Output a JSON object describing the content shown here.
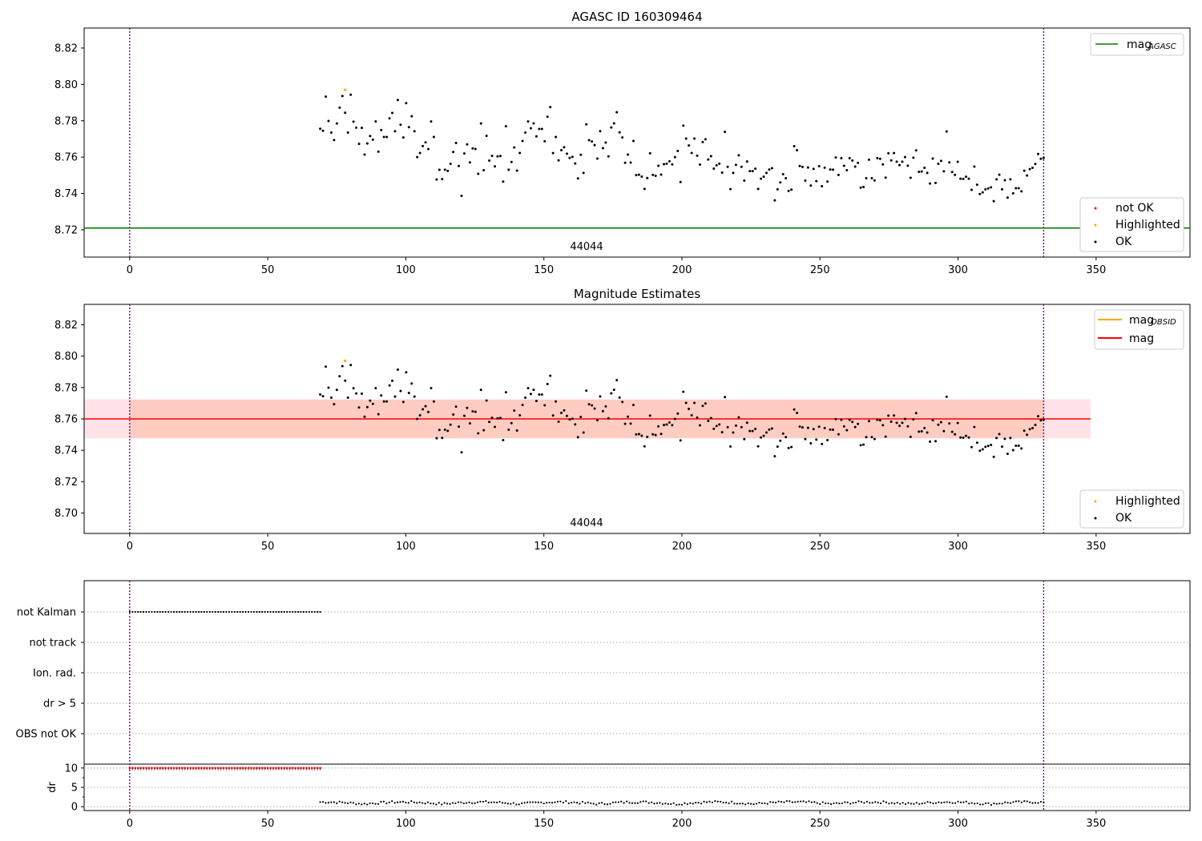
{
  "chart_data": [
    {
      "type": "scatter",
      "title": "AGASC ID 160309464",
      "obsid_label": "44044",
      "ylim": [
        8.705,
        8.831
      ],
      "yticks": [
        "8.72",
        "8.74",
        "8.76",
        "8.78",
        "8.80",
        "8.82"
      ],
      "xlim": [
        -16.5,
        384
      ],
      "xticks": [
        "0",
        "50",
        "100",
        "150",
        "200",
        "250",
        "300",
        "350"
      ],
      "obs_bounds": [
        0,
        331
      ],
      "mag_agasc": 8.721,
      "legend_top": [
        {
          "label": "mag",
          "subscript": "AGASC",
          "color": "#008000"
        }
      ],
      "legend_bottom": [
        {
          "label": "not OK",
          "color": "#ff0000"
        },
        {
          "label": "Highlighted",
          "color": "#ffa500"
        },
        {
          "label": "OK",
          "color": "#000000"
        }
      ],
      "highlighted": [
        {
          "x": 78,
          "y": 8.797
        }
      ],
      "series": {
        "x_start": 69,
        "x_end": 331,
        "values": [
          8.7756,
          8.7745,
          8.7933,
          8.7799,
          8.7735,
          8.7694,
          8.7785,
          8.7872,
          8.7936,
          8.7844,
          8.7735,
          8.7943,
          8.7795,
          8.7762,
          8.7673,
          8.7761,
          8.7614,
          8.7675,
          8.7716,
          8.7696,
          8.7796,
          8.763,
          8.7749,
          8.7711,
          8.7711,
          8.7813,
          8.7843,
          8.7742,
          8.7914,
          8.7778,
          8.7708,
          8.7897,
          8.7765,
          8.7825,
          8.7742,
          8.76,
          8.7623,
          8.7661,
          8.7681,
          8.7644,
          8.7796,
          8.7711,
          8.7477,
          8.753,
          8.7479,
          8.7531,
          8.7524,
          8.7563,
          8.7628,
          8.7678,
          8.7551,
          8.7387,
          8.762,
          8.767,
          8.7571,
          8.7648,
          8.7645,
          8.7508,
          8.7785,
          8.7528,
          8.7717,
          8.7581,
          8.7607,
          8.7549,
          8.7604,
          8.7606,
          8.7465,
          8.777,
          8.7531,
          8.7573,
          8.7653,
          8.7526,
          8.7623,
          8.7689,
          8.7735,
          8.7796,
          8.7759,
          8.7786,
          8.7714,
          8.7755,
          8.7755,
          8.7687,
          8.7822,
          8.7875,
          8.7622,
          8.7711,
          8.7582,
          8.7638,
          8.7654,
          8.7619,
          8.7596,
          8.7601,
          8.7565,
          8.7483,
          8.7613,
          8.7513,
          8.778,
          8.7693,
          8.7686,
          8.7666,
          8.7592,
          8.7743,
          8.7649,
          8.768,
          8.7604,
          8.7763,
          8.7786,
          8.7847,
          8.7736,
          8.7708,
          8.7569,
          8.7614,
          8.757,
          8.7689,
          8.7501,
          8.7503,
          8.7493,
          8.7425,
          8.7485,
          8.7621,
          8.7502,
          8.7497,
          8.7552,
          8.7504,
          8.7561,
          8.7564,
          8.7577,
          8.756,
          8.76,
          8.7634,
          8.7463,
          8.7773,
          8.7702,
          8.7664,
          8.7623,
          8.7702,
          8.7608,
          8.7559,
          8.7683,
          8.7698,
          8.7587,
          8.7605,
          8.7537,
          8.7555,
          8.7564,
          8.7515,
          8.7739,
          8.7547,
          8.7424,
          8.7513,
          8.7557,
          8.761,
          8.7547,
          8.7471,
          8.7576,
          8.7523,
          8.7523,
          8.7536,
          8.7425,
          8.7481,
          8.7492,
          8.7513,
          8.7532,
          8.7539,
          8.7362,
          8.7423,
          8.7461,
          8.7506,
          8.7484,
          8.7414,
          8.7421,
          8.766,
          8.7638,
          8.7551,
          8.7546,
          8.7471,
          8.7543,
          8.7444,
          8.7535,
          8.7468,
          8.755,
          8.744,
          8.7542,
          8.7465,
          8.7532,
          8.7531,
          8.7598,
          8.7502,
          8.7594,
          8.7552,
          8.7528,
          8.7594,
          8.7581,
          8.7548,
          8.7568,
          8.7432,
          8.7436,
          8.7484,
          8.7586,
          8.7484,
          8.7472,
          8.7594,
          8.7591,
          8.756,
          8.7487,
          8.7621,
          8.7582,
          8.7622,
          8.7575,
          8.7556,
          8.7575,
          8.76,
          8.7553,
          8.7486,
          8.7597,
          8.7637,
          8.7519,
          8.7521,
          8.7541,
          8.7513,
          8.7455,
          8.7592,
          8.7458,
          8.7563,
          8.7579,
          8.7522,
          8.7741,
          8.7571,
          8.7518,
          8.7502,
          8.7574,
          8.7481,
          8.748,
          8.7492,
          8.7481,
          8.742,
          8.7548,
          8.7448,
          8.7397,
          8.7406,
          8.7422,
          8.7428,
          8.7434,
          8.7358,
          8.7478,
          8.7503,
          8.7423,
          8.7473,
          8.7377,
          8.7478,
          8.7401,
          8.7429,
          8.7429,
          8.7412,
          8.7525,
          8.7499,
          8.7534,
          8.7541,
          8.7562,
          8.7617,
          8.7591,
          8.7595
        ]
      }
    },
    {
      "type": "scatter",
      "title": "Magnitude Estimates",
      "obsid_label": "44044",
      "ylim": [
        8.687,
        8.833
      ],
      "yticks": [
        "8.70",
        "8.72",
        "8.74",
        "8.76",
        "8.78",
        "8.80",
        "8.82"
      ],
      "xlim": [
        -16.5,
        384
      ],
      "xticks": [
        "0",
        "50",
        "100",
        "150",
        "200",
        "250",
        "300",
        "350"
      ],
      "obs_bounds": [
        0,
        331
      ],
      "mag": 8.76,
      "mag_obsid": 8.76,
      "band_outer": [
        8.7475,
        8.7725
      ],
      "band_inner": [
        8.7478,
        8.7722
      ],
      "band_xrange": [
        -16.5,
        348
      ],
      "legend_top": [
        {
          "label": "mag",
          "subscript": "OBSID",
          "color": "#ffa500"
        },
        {
          "label": "mag",
          "subscript": "",
          "color": "#ff0000"
        }
      ],
      "legend_bottom": [
        {
          "label": "Highlighted",
          "color": "#ffa500"
        },
        {
          "label": "OK",
          "color": "#000000"
        }
      ]
    },
    {
      "type": "scatter",
      "flags": [
        "not Kalman",
        "not track",
        "Ion. rad.",
        "dr > 5",
        "OBS not OK"
      ],
      "not_kalman_range": [
        0,
        69
      ],
      "ylabel": "dr",
      "dr_yticks": [
        "0",
        "5",
        "10"
      ],
      "dr_ylim": [
        -1,
        11
      ],
      "dr_clipped_value": 10,
      "dr_clipped_range": [
        0,
        69
      ],
      "dr_range": [
        69,
        331
      ],
      "xticks": [
        "0",
        "50",
        "100",
        "150",
        "200",
        "250",
        "300",
        "350"
      ]
    }
  ]
}
